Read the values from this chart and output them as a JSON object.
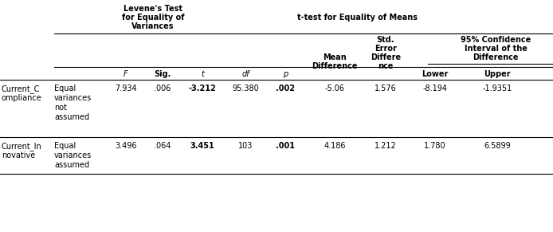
{
  "rows": [
    {
      "var1": "Current_C",
      "var2": "ompliance",
      "cond1": "Equal",
      "cond2": "variances",
      "cond3": "not",
      "cond4": "assumed",
      "F": "7.934",
      "Sig": ".006",
      "t": "-3.212",
      "df": "95.380",
      "p": ".002",
      "mean_diff": "-5.06",
      "std_err": "1.576",
      "lower": "-8.194",
      "upper": "-1.9351"
    },
    {
      "var1": "Current_In",
      "var2": "novative",
      "cond1": "Equal",
      "cond2": "variances",
      "cond3": "assumed",
      "cond4": "",
      "F": "3.496",
      "Sig": ".064",
      "t": "3.451",
      "df": "103",
      "p": ".001",
      "mean_diff": "4.186",
      "std_err": "1.212",
      "lower": "1.780",
      "upper": "6.5899"
    }
  ],
  "bg_color": "#ffffff",
  "text_color": "#000000"
}
